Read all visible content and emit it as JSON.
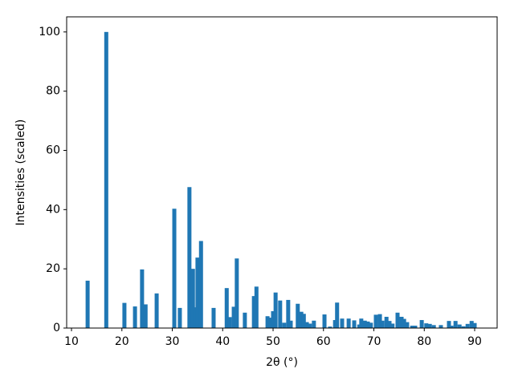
{
  "chart_data": {
    "type": "bar",
    "xlabel": "2θ (°)",
    "ylabel": "Intensities (scaled)",
    "color": "#1f77b4",
    "x": [
      13.2,
      16.9,
      20.5,
      22.6,
      24.0,
      24.7,
      26.9,
      30.4,
      31.5,
      33.4,
      34.1,
      34.5,
      35.0,
      35.7,
      38.2,
      40.8,
      41.4,
      42.2,
      42.8,
      44.4,
      46.2,
      46.7,
      48.9,
      49.5,
      50.0,
      50.5,
      51.4,
      52.2,
      53.0,
      53.5,
      54.9,
      55.6,
      56.1,
      56.7,
      57.3,
      58.1,
      60.2,
      61.3,
      62.3,
      62.7,
      63.7,
      65.0,
      66.1,
      67.1,
      67.5,
      68.2,
      68.8,
      69.4,
      70.4,
      71.2,
      71.7,
      72.5,
      73.1,
      73.7,
      74.7,
      75.5,
      76.0,
      76.6,
      77.6,
      78.2,
      79.5,
      80.4,
      81.1,
      81.9,
      83.3,
      84.9,
      85.4,
      86.2,
      87.0,
      87.8,
      88.6,
      89.4,
      90.0
    ],
    "values": [
      16,
      100,
      8.5,
      7.3,
      19.8,
      8,
      11.7,
      40.3,
      6.8,
      47.6,
      20,
      7,
      23.8,
      29.4,
      6.8,
      13.5,
      3.7,
      7.2,
      23.5,
      5.2,
      10.8,
      14,
      4,
      3.5,
      5.7,
      12,
      9.3,
      1.8,
      9.5,
      2.5,
      8.2,
      5.5,
      4.8,
      2,
      1.5,
      2.5,
      4.6,
      0.5,
      2.7,
      8.6,
      3.2,
      3.2,
      2.6,
      1.2,
      3.2,
      2.5,
      2.2,
      1.8,
      4.5,
      4.7,
      2.5,
      3.8,
      2.4,
      1.5,
      5.2,
      3.8,
      3.1,
      2,
      0.8,
      0.8,
      2.7,
      1.6,
      1.4,
      1,
      1,
      2.4,
      0.8,
      2.4,
      1.2,
      0.6,
      1.4,
      2.4,
      1.7
    ],
    "xlim": [
      9.04,
      94.46
    ],
    "ylim": [
      0,
      105.1
    ],
    "xticks": [
      10,
      20,
      30,
      40,
      50,
      60,
      70,
      80,
      90
    ],
    "yticks": [
      0,
      20,
      40,
      60,
      80,
      100
    ]
  }
}
